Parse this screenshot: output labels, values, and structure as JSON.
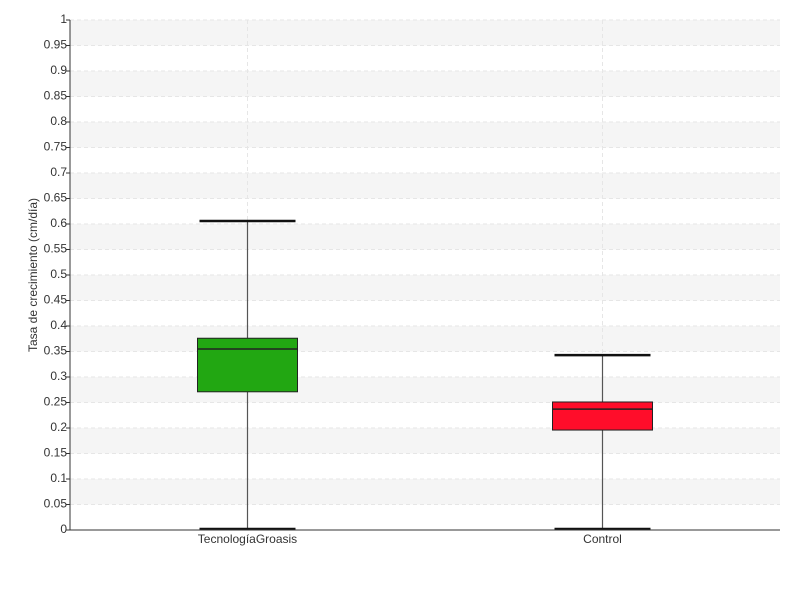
{
  "chart_data": {
    "type": "box",
    "y_label": "Tasa de crecimiento (cm/día)",
    "categories": [
      "TecnologíaGroasis",
      "Control"
    ],
    "boxes": [
      {
        "min": 0.002,
        "q1": 0.271,
        "median": 0.355,
        "q3": 0.376,
        "max": 0.606,
        "color": "#22a712"
      },
      {
        "min": 0.002,
        "q1": 0.196,
        "median": 0.237,
        "q3": 0.251,
        "max": 0.343,
        "color": "#ff0d2a"
      }
    ],
    "ylim": [
      0,
      1
    ],
    "yticks": [
      0,
      0.05,
      0.1,
      0.15,
      0.2,
      0.25,
      0.3,
      0.35,
      0.4,
      0.45,
      0.5,
      0.55,
      0.6,
      0.65,
      0.7,
      0.75,
      0.8,
      0.85,
      0.9,
      0.95,
      1
    ],
    "grid": true
  }
}
